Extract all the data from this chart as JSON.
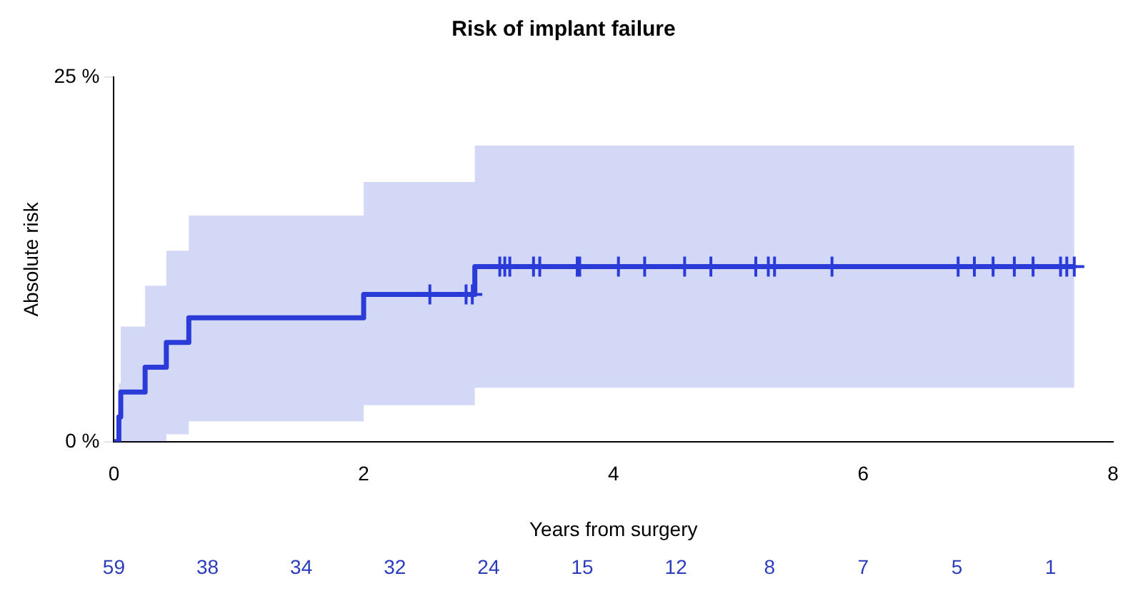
{
  "chart_data": {
    "type": "step",
    "title": "Risk of implant failure",
    "xlabel": "Years from surgery",
    "ylabel": "Absolute risk",
    "xlim": [
      0,
      8
    ],
    "xticks": [
      0,
      2,
      4,
      6,
      8
    ],
    "ylim": [
      0,
      25
    ],
    "yticks": [
      {
        "value": 0,
        "label": "0 %"
      },
      {
        "value": 25,
        "label": "25 %"
      }
    ],
    "annotations": [
      "59",
      "38",
      "34",
      "32",
      "24",
      "15",
      "12",
      "8",
      "7",
      "5",
      "1"
    ],
    "grid": false,
    "legend": false,
    "series": [
      {
        "color": "#2a3bd8",
        "x": [
          0,
          0.04,
          0.055,
          0.25,
          0.42,
          0.6,
          2.0,
          2.89,
          7.69
        ],
        "values": [
          0,
          1.7,
          3.4,
          5.1,
          6.8,
          8.5,
          10.1,
          12.0,
          12.0
        ],
        "lower": [
          0,
          0,
          0,
          0,
          0.5,
          1.4,
          2.5,
          3.7,
          3.7
        ],
        "upper": [
          0,
          4,
          7.9,
          10.7,
          13.1,
          15.5,
          17.8,
          20.3,
          20.3
        ]
      },
      {
        "type": "scatter",
        "color": "#2a3bd8",
        "marker": "cross",
        "x": [
          2.53,
          2.82,
          2.87,
          3.09,
          3.13,
          3.17,
          3.36,
          3.41,
          3.71,
          3.73,
          4.04,
          4.25,
          4.57,
          4.78,
          5.14,
          5.24,
          5.29,
          5.75,
          6.76,
          6.89,
          7.04,
          7.21,
          7.36,
          7.58,
          7.63,
          7.69
        ],
        "values": [
          10.1,
          10.1,
          10.1,
          12.0,
          12.0,
          12.0,
          12.0,
          12.0,
          12.0,
          12.0,
          12.0,
          12.0,
          12.0,
          12.0,
          12.0,
          12.0,
          12.0,
          12.0,
          12.0,
          12.0,
          12.0,
          12.0,
          12.0,
          12.0,
          12.0,
          12.0
        ]
      }
    ]
  }
}
